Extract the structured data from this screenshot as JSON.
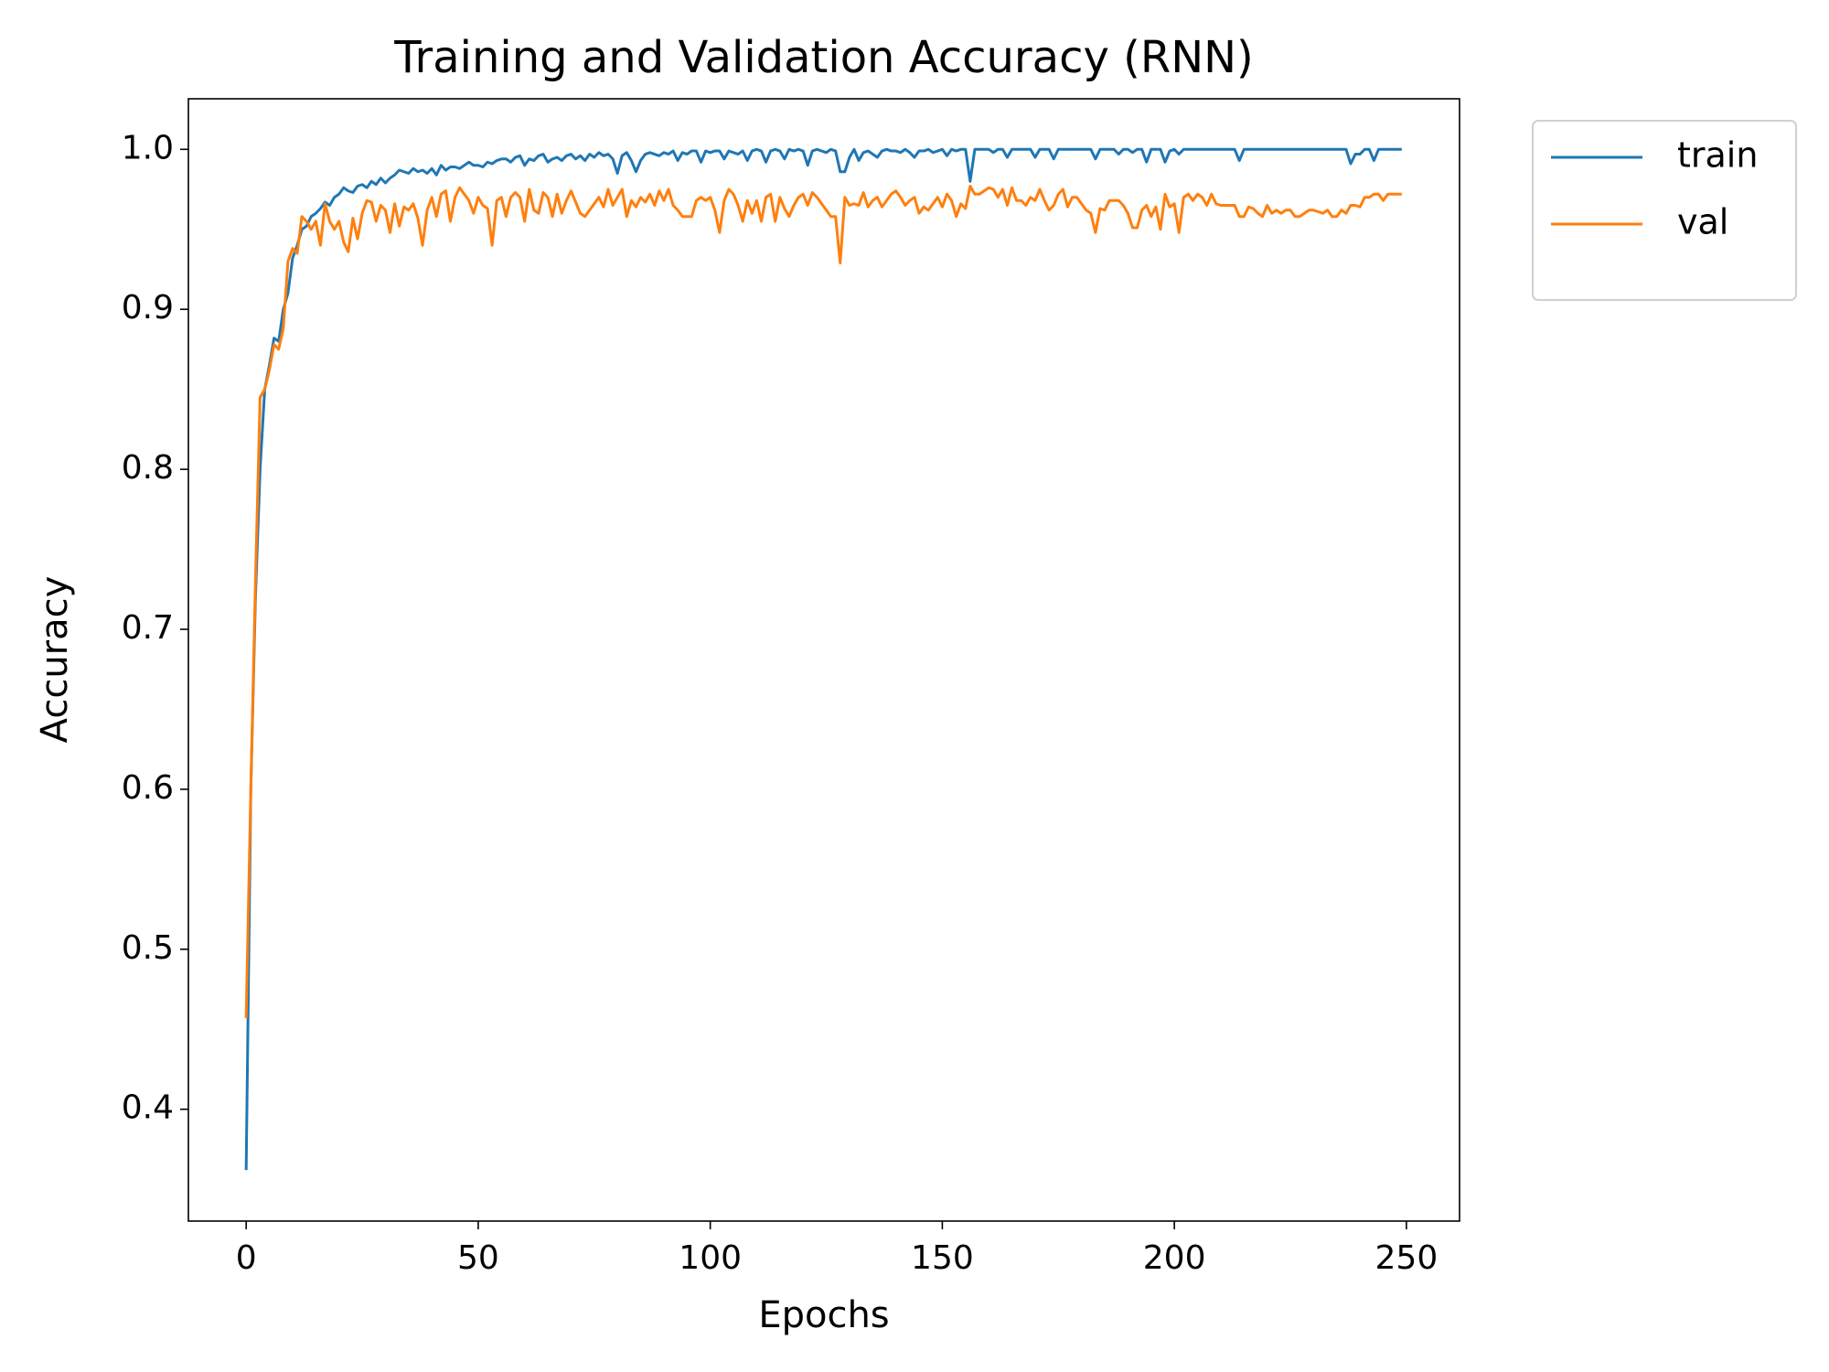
{
  "chart_data": {
    "type": "line",
    "title": "Training and Validation Accuracy (RNN)",
    "x_label": "Epochs",
    "y_label": "Accuracy",
    "x": [
      0,
      1,
      2,
      3,
      4,
      5,
      6,
      7,
      8,
      9,
      10,
      11,
      12,
      13,
      14,
      15,
      16,
      17,
      18,
      19,
      20,
      21,
      22,
      23,
      24,
      25,
      26,
      27,
      28,
      29,
      30,
      31,
      32,
      33,
      34,
      35,
      36,
      37,
      38,
      39,
      40,
      41,
      42,
      43,
      44,
      45,
      46,
      47,
      48,
      49,
      50,
      51,
      52,
      53,
      54,
      55,
      56,
      57,
      58,
      59,
      60,
      61,
      62,
      63,
      64,
      65,
      66,
      67,
      68,
      69,
      70,
      71,
      72,
      73,
      74,
      75,
      76,
      77,
      78,
      79,
      80,
      81,
      82,
      83,
      84,
      85,
      86,
      87,
      88,
      89,
      90,
      91,
      92,
      93,
      94,
      95,
      96,
      97,
      98,
      99,
      100,
      101,
      102,
      103,
      104,
      105,
      106,
      107,
      108,
      109,
      110,
      111,
      112,
      113,
      114,
      115,
      116,
      117,
      118,
      119,
      120,
      121,
      122,
      123,
      124,
      125,
      126,
      127,
      128,
      129,
      130,
      131,
      132,
      133,
      134,
      135,
      136,
      137,
      138,
      139,
      140,
      141,
      142,
      143,
      144,
      145,
      146,
      147,
      148,
      149,
      150,
      151,
      152,
      153,
      154,
      155,
      156,
      157,
      158,
      159,
      160,
      161,
      162,
      163,
      164,
      165,
      166,
      167,
      168,
      169,
      170,
      171,
      172,
      173,
      174,
      175,
      176,
      177,
      178,
      179,
      180,
      181,
      182,
      183,
      184,
      185,
      186,
      187,
      188,
      189,
      190,
      191,
      192,
      193,
      194,
      195,
      196,
      197,
      198,
      199,
      200,
      201,
      202,
      203,
      204,
      205,
      206,
      207,
      208,
      209,
      210,
      211,
      212,
      213,
      214,
      215,
      216,
      217,
      218,
      219,
      220,
      221,
      222,
      223,
      224,
      225,
      226,
      227,
      228,
      229,
      230,
      231,
      232,
      233,
      234,
      235,
      236,
      237,
      238,
      239,
      240,
      241,
      242,
      243,
      244,
      245,
      246,
      247,
      248,
      249
    ],
    "series": [
      {
        "name": "train",
        "color": "#1f77b4",
        "values": [
          0.362,
          0.6,
          0.72,
          0.8,
          0.85,
          0.865,
          0.882,
          0.88,
          0.9,
          0.91,
          0.932,
          0.94,
          0.95,
          0.952,
          0.958,
          0.96,
          0.963,
          0.967,
          0.965,
          0.97,
          0.972,
          0.976,
          0.974,
          0.973,
          0.977,
          0.978,
          0.976,
          0.98,
          0.978,
          0.982,
          0.979,
          0.982,
          0.984,
          0.987,
          0.986,
          0.985,
          0.988,
          0.986,
          0.987,
          0.985,
          0.988,
          0.984,
          0.99,
          0.987,
          0.989,
          0.989,
          0.988,
          0.99,
          0.992,
          0.99,
          0.99,
          0.989,
          0.992,
          0.991,
          0.993,
          0.994,
          0.994,
          0.992,
          0.995,
          0.996,
          0.99,
          0.994,
          0.993,
          0.996,
          0.997,
          0.992,
          0.994,
          0.995,
          0.993,
          0.996,
          0.997,
          0.994,
          0.996,
          0.993,
          0.997,
          0.995,
          0.998,
          0.996,
          0.997,
          0.994,
          0.985,
          0.996,
          0.998,
          0.993,
          0.986,
          0.993,
          0.997,
          0.998,
          0.997,
          0.996,
          0.998,
          0.997,
          0.999,
          0.993,
          0.998,
          0.997,
          0.999,
          0.999,
          0.992,
          0.999,
          0.998,
          0.999,
          0.999,
          0.994,
          0.999,
          0.998,
          0.997,
          0.999,
          0.993,
          0.999,
          1.0,
          0.999,
          0.992,
          0.999,
          1.0,
          0.999,
          0.994,
          1.0,
          0.999,
          1.0,
          0.999,
          0.99,
          0.999,
          1.0,
          0.999,
          0.998,
          1.0,
          0.999,
          0.986,
          0.986,
          0.995,
          1.0,
          0.993,
          0.998,
          0.999,
          0.997,
          0.995,
          0.999,
          1.0,
          0.999,
          0.999,
          0.998,
          1.0,
          0.998,
          0.995,
          0.999,
          0.999,
          1.0,
          0.998,
          0.999,
          1.0,
          0.996,
          1.0,
          0.999,
          1.0,
          1.0,
          0.98,
          1.0,
          1.0,
          1.0,
          1.0,
          0.998,
          1.0,
          1.0,
          0.995,
          1.0,
          1.0,
          1.0,
          1.0,
          1.0,
          0.995,
          1.0,
          1.0,
          1.0,
          0.994,
          1.0,
          1.0,
          1.0,
          1.0,
          1.0,
          1.0,
          1.0,
          1.0,
          0.994,
          1.0,
          1.0,
          1.0,
          1.0,
          0.997,
          1.0,
          1.0,
          0.998,
          1.0,
          1.0,
          0.992,
          1.0,
          1.0,
          1.0,
          0.992,
          0.999,
          1.0,
          0.997,
          1.0,
          1.0,
          1.0,
          1.0,
          1.0,
          1.0,
          1.0,
          1.0,
          1.0,
          1.0,
          1.0,
          1.0,
          0.993,
          1.0,
          1.0,
          1.0,
          1.0,
          1.0,
          1.0,
          1.0,
          1.0,
          1.0,
          1.0,
          1.0,
          1.0,
          1.0,
          1.0,
          1.0,
          1.0,
          1.0,
          1.0,
          1.0,
          1.0,
          1.0,
          1.0,
          1.0,
          0.991,
          0.997,
          0.997,
          1.0,
          1.0,
          0.993,
          1.0,
          1.0,
          1.0,
          1.0,
          1.0,
          1.0
        ]
      },
      {
        "name": "val",
        "color": "#ff7f0e",
        "values": [
          0.457,
          0.6,
          0.73,
          0.845,
          0.85,
          0.862,
          0.878,
          0.875,
          0.888,
          0.93,
          0.938,
          0.935,
          0.958,
          0.955,
          0.95,
          0.955,
          0.94,
          0.966,
          0.955,
          0.95,
          0.955,
          0.942,
          0.936,
          0.957,
          0.944,
          0.96,
          0.968,
          0.967,
          0.955,
          0.965,
          0.962,
          0.948,
          0.966,
          0.952,
          0.964,
          0.962,
          0.966,
          0.957,
          0.94,
          0.962,
          0.97,
          0.958,
          0.972,
          0.974,
          0.955,
          0.97,
          0.976,
          0.972,
          0.968,
          0.96,
          0.97,
          0.965,
          0.963,
          0.94,
          0.968,
          0.97,
          0.958,
          0.97,
          0.973,
          0.97,
          0.955,
          0.975,
          0.962,
          0.96,
          0.973,
          0.97,
          0.958,
          0.972,
          0.96,
          0.968,
          0.974,
          0.967,
          0.96,
          0.958,
          0.962,
          0.966,
          0.97,
          0.964,
          0.975,
          0.965,
          0.97,
          0.975,
          0.958,
          0.968,
          0.964,
          0.97,
          0.967,
          0.972,
          0.965,
          0.974,
          0.968,
          0.975,
          0.965,
          0.962,
          0.958,
          0.958,
          0.958,
          0.968,
          0.97,
          0.968,
          0.97,
          0.962,
          0.948,
          0.968,
          0.975,
          0.972,
          0.965,
          0.955,
          0.968,
          0.96,
          0.968,
          0.955,
          0.97,
          0.972,
          0.955,
          0.97,
          0.963,
          0.958,
          0.965,
          0.97,
          0.972,
          0.965,
          0.973,
          0.97,
          0.966,
          0.962,
          0.958,
          0.958,
          0.929,
          0.97,
          0.965,
          0.966,
          0.965,
          0.973,
          0.964,
          0.968,
          0.97,
          0.964,
          0.968,
          0.972,
          0.974,
          0.97,
          0.965,
          0.968,
          0.97,
          0.96,
          0.964,
          0.962,
          0.966,
          0.97,
          0.964,
          0.972,
          0.968,
          0.958,
          0.966,
          0.963,
          0.977,
          0.972,
          0.972,
          0.974,
          0.976,
          0.975,
          0.97,
          0.975,
          0.965,
          0.976,
          0.968,
          0.968,
          0.965,
          0.97,
          0.968,
          0.975,
          0.968,
          0.962,
          0.965,
          0.972,
          0.975,
          0.964,
          0.97,
          0.97,
          0.966,
          0.962,
          0.96,
          0.948,
          0.963,
          0.962,
          0.968,
          0.968,
          0.968,
          0.965,
          0.96,
          0.951,
          0.951,
          0.962,
          0.965,
          0.958,
          0.964,
          0.95,
          0.972,
          0.964,
          0.966,
          0.948,
          0.97,
          0.972,
          0.968,
          0.972,
          0.97,
          0.965,
          0.972,
          0.966,
          0.965,
          0.965,
          0.965,
          0.965,
          0.958,
          0.958,
          0.964,
          0.963,
          0.96,
          0.958,
          0.965,
          0.96,
          0.962,
          0.96,
          0.962,
          0.962,
          0.958,
          0.958,
          0.96,
          0.962,
          0.962,
          0.961,
          0.96,
          0.962,
          0.958,
          0.958,
          0.962,
          0.96,
          0.965,
          0.965,
          0.964,
          0.97,
          0.97,
          0.972,
          0.972,
          0.968,
          0.972,
          0.972,
          0.972,
          0.972
        ]
      }
    ],
    "xlim": [
      -12.45,
      261.45
    ],
    "xticks": [
      0,
      50,
      100,
      150,
      200,
      250
    ],
    "ylim": [
      0.3301,
      1.0316
    ],
    "yticks": [
      0.4,
      0.5,
      0.6,
      0.7,
      0.8,
      0.9,
      {
        "value": 1,
        "label": "1.0"
      }
    ],
    "grid": false,
    "legend_loc": "outside upper right"
  }
}
